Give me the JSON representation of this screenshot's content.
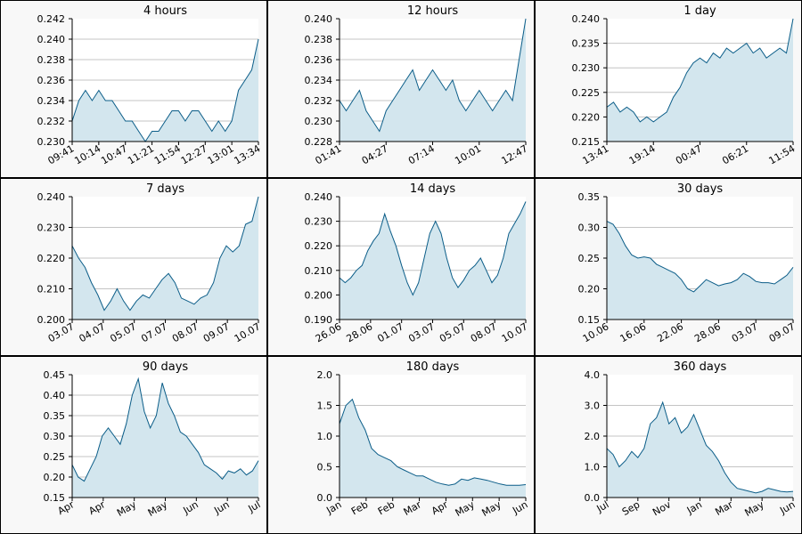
{
  "chart_data": [
    {
      "type": "area",
      "title": "4 hours",
      "ylim": [
        0.23,
        0.242
      ],
      "yticks": [
        "0.230",
        "0.232",
        "0.234",
        "0.236",
        "0.238",
        "0.240",
        "0.242"
      ],
      "xticks": [
        "09:41",
        "10:14",
        "10:47",
        "11:21",
        "11:54",
        "12:27",
        "13:01",
        "13:34"
      ],
      "y": [
        0.232,
        0.234,
        0.235,
        0.234,
        0.235,
        0.234,
        0.234,
        0.233,
        0.232,
        0.232,
        0.231,
        0.23,
        0.231,
        0.231,
        0.232,
        0.233,
        0.233,
        0.232,
        0.233,
        0.233,
        0.232,
        0.231,
        0.232,
        0.231,
        0.232,
        0.235,
        0.236,
        0.237,
        0.24
      ]
    },
    {
      "type": "area",
      "title": "12 hours",
      "ylim": [
        0.228,
        0.24
      ],
      "yticks": [
        "0.228",
        "0.230",
        "0.232",
        "0.234",
        "0.236",
        "0.238",
        "0.240"
      ],
      "xticks": [
        "01:41",
        "04:27",
        "07:14",
        "10:01",
        "12:47"
      ],
      "y": [
        0.232,
        0.231,
        0.232,
        0.233,
        0.231,
        0.23,
        0.229,
        0.231,
        0.232,
        0.233,
        0.234,
        0.235,
        0.233,
        0.234,
        0.235,
        0.234,
        0.233,
        0.234,
        0.232,
        0.231,
        0.232,
        0.233,
        0.232,
        0.231,
        0.232,
        0.233,
        0.232,
        0.236,
        0.24
      ]
    },
    {
      "type": "area",
      "title": "1 day",
      "ylim": [
        0.215,
        0.24
      ],
      "yticks": [
        "0.215",
        "0.220",
        "0.225",
        "0.230",
        "0.235",
        "0.240"
      ],
      "xticks": [
        "13:41",
        "19:14",
        "00:47",
        "06:21",
        "11:54"
      ],
      "y": [
        0.222,
        0.223,
        0.221,
        0.222,
        0.221,
        0.219,
        0.22,
        0.219,
        0.22,
        0.221,
        0.224,
        0.226,
        0.229,
        0.231,
        0.232,
        0.231,
        0.233,
        0.232,
        0.234,
        0.233,
        0.234,
        0.235,
        0.233,
        0.234,
        0.232,
        0.233,
        0.234,
        0.233,
        0.24
      ]
    },
    {
      "type": "area",
      "title": "7 days",
      "ylim": [
        0.2,
        0.24
      ],
      "yticks": [
        "0.200",
        "0.210",
        "0.220",
        "0.230",
        "0.240"
      ],
      "xticks": [
        "03.07",
        "04.07",
        "05.07",
        "07.07",
        "08.07",
        "09.07",
        "10.07"
      ],
      "y": [
        0.224,
        0.22,
        0.217,
        0.212,
        0.208,
        0.203,
        0.206,
        0.21,
        0.206,
        0.203,
        0.206,
        0.208,
        0.207,
        0.21,
        0.213,
        0.215,
        0.212,
        0.207,
        0.206,
        0.205,
        0.207,
        0.208,
        0.212,
        0.22,
        0.224,
        0.222,
        0.224,
        0.231,
        0.232,
        0.24
      ]
    },
    {
      "type": "area",
      "title": "14 days",
      "ylim": [
        0.19,
        0.24
      ],
      "yticks": [
        "0.190",
        "0.200",
        "0.210",
        "0.220",
        "0.230",
        "0.240"
      ],
      "xticks": [
        "26.06",
        "28.06",
        "01.07",
        "03.07",
        "05.07",
        "08.07",
        "10.07"
      ],
      "y": [
        0.207,
        0.205,
        0.207,
        0.21,
        0.212,
        0.218,
        0.222,
        0.225,
        0.233,
        0.226,
        0.22,
        0.212,
        0.205,
        0.2,
        0.205,
        0.215,
        0.225,
        0.23,
        0.225,
        0.215,
        0.207,
        0.203,
        0.206,
        0.21,
        0.212,
        0.215,
        0.21,
        0.205,
        0.208,
        0.215,
        0.225,
        0.229,
        0.233,
        0.238
      ]
    },
    {
      "type": "area",
      "title": "30 days",
      "ylim": [
        0.15,
        0.35
      ],
      "yticks": [
        "0.15",
        "0.20",
        "0.25",
        "0.30",
        "0.35"
      ],
      "xticks": [
        "10.06",
        "16.06",
        "22.06",
        "28.06",
        "03.07",
        "09.07"
      ],
      "y": [
        0.31,
        0.305,
        0.29,
        0.27,
        0.255,
        0.25,
        0.252,
        0.25,
        0.24,
        0.235,
        0.23,
        0.225,
        0.215,
        0.2,
        0.195,
        0.205,
        0.215,
        0.21,
        0.205,
        0.208,
        0.21,
        0.215,
        0.225,
        0.22,
        0.212,
        0.21,
        0.21,
        0.208,
        0.215,
        0.222,
        0.235
      ]
    },
    {
      "type": "area",
      "title": "90 days",
      "ylim": [
        0.15,
        0.45
      ],
      "yticks": [
        "0.15",
        "0.20",
        "0.25",
        "0.30",
        "0.35",
        "0.40",
        "0.45"
      ],
      "xticks": [
        "Apr",
        "Apr",
        "May",
        "May",
        "Jun",
        "Jun",
        "Jul"
      ],
      "y": [
        0.23,
        0.2,
        0.19,
        0.22,
        0.25,
        0.3,
        0.32,
        0.3,
        0.28,
        0.33,
        0.4,
        0.44,
        0.36,
        0.32,
        0.35,
        0.43,
        0.38,
        0.35,
        0.31,
        0.3,
        0.28,
        0.26,
        0.23,
        0.22,
        0.21,
        0.195,
        0.215,
        0.21,
        0.22,
        0.205,
        0.215,
        0.24
      ]
    },
    {
      "type": "area",
      "title": "180 days",
      "ylim": [
        0.0,
        2.0
      ],
      "yticks": [
        "0.0",
        "0.5",
        "1.0",
        "1.5",
        "2.0"
      ],
      "xticks": [
        "Jan",
        "Feb",
        "Feb",
        "Mar",
        "Apr",
        "May",
        "May",
        "Jun"
      ],
      "y": [
        1.2,
        1.5,
        1.6,
        1.3,
        1.1,
        0.8,
        0.7,
        0.65,
        0.6,
        0.5,
        0.45,
        0.4,
        0.35,
        0.35,
        0.3,
        0.25,
        0.22,
        0.2,
        0.22,
        0.3,
        0.28,
        0.32,
        0.3,
        0.28,
        0.25,
        0.22,
        0.2,
        0.2,
        0.2,
        0.21
      ]
    },
    {
      "type": "area",
      "title": "360 days",
      "ylim": [
        0.0,
        4.0
      ],
      "yticks": [
        "0.0",
        "1.0",
        "2.0",
        "3.0",
        "4.0"
      ],
      "xticks": [
        "Jul",
        "Sep",
        "Nov",
        "Jan",
        "Mar",
        "May",
        "Jun"
      ],
      "y": [
        1.6,
        1.4,
        1.0,
        1.2,
        1.5,
        1.3,
        1.6,
        2.4,
        2.6,
        3.1,
        2.4,
        2.6,
        2.1,
        2.3,
        2.7,
        2.2,
        1.7,
        1.5,
        1.2,
        0.8,
        0.5,
        0.3,
        0.25,
        0.2,
        0.15,
        0.2,
        0.3,
        0.25,
        0.2,
        0.18,
        0.2
      ]
    }
  ]
}
